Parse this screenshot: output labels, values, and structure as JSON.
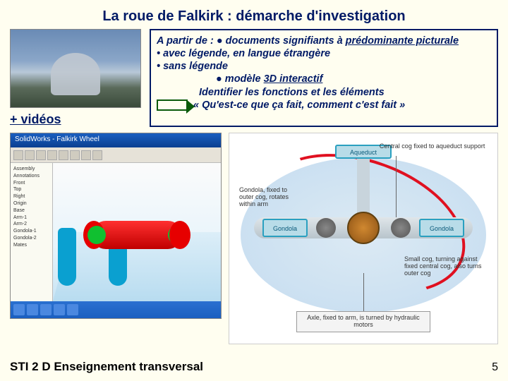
{
  "title": "La roue de Falkirk : démarche d'investigation",
  "videos_link": "+ vidéos",
  "box": {
    "line1_a": "A partir de : ",
    "line1_b": " documents signifiants à ",
    "line1_c": "prédominante picturale",
    "bullet1": "• avec légende, en langue étrangère",
    "bullet2": "• sans légende",
    "line4_a": " modèle ",
    "line4_b": "3D interactif",
    "line5": "Identifier les fonctions et les éléments",
    "line6": "« Qu'est-ce que ça fait, comment c'est fait »"
  },
  "cad": {
    "window_title": "SolidWorks - Falkirk Wheel",
    "tree_items": [
      "Assembly",
      "Annotations",
      "Front",
      "Top",
      "Right",
      "Origin",
      "Base",
      "Arm-1",
      "Arm-2",
      "Gondola-1",
      "Gondola-2",
      "Mates"
    ],
    "colors": {
      "cylinder": "#e60000",
      "leg": "#0aa0d0",
      "gondola": "#10c030",
      "floor": "#c8e4f4"
    }
  },
  "diagram": {
    "aqueduct": "Aqueduct",
    "central_cog": "Central cog fixed to aqueduct support",
    "gondola_label": "Gondola, fixed to outer cog, rotates within arm",
    "gondola_box": "Gondola",
    "small_cog": "Small cog, turning against fixed central cog, also turns outer cog",
    "axle": "Axle, fixed to arm, is turned by hydraulic motors",
    "colors": {
      "bg_radial_inner": "#dceaf4",
      "bg_radial_outer": "#c4dcf0",
      "box_fill": "#b8dce8",
      "box_border": "#2aa0c0",
      "hub": "#a86820",
      "arrow": "#e01020"
    }
  },
  "footer": "STI 2 D Enseignement transversal",
  "page_number": "5"
}
